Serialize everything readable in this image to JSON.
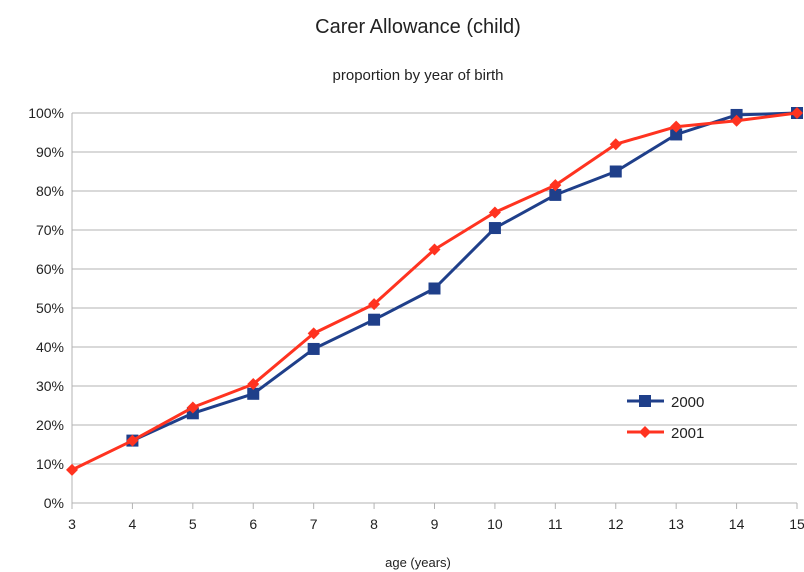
{
  "chart_data": {
    "type": "line",
    "title": "Carer Allowance (child)",
    "subtitle": "proportion by year of birth",
    "xlabel": "age (years)",
    "ylabel": "",
    "x": [
      3,
      4,
      5,
      6,
      7,
      8,
      9,
      10,
      11,
      12,
      13,
      14,
      15
    ],
    "xlim": [
      3,
      15
    ],
    "ylim": [
      0,
      1
    ],
    "y_ticks": [
      "0%",
      "10%",
      "20%",
      "30%",
      "40%",
      "50%",
      "60%",
      "70%",
      "80%",
      "90%",
      "100%"
    ],
    "grid": true,
    "legend_position": "right",
    "series": [
      {
        "name": "2000",
        "color": "#1f3f8a",
        "marker": "square",
        "values": [
          null,
          0.16,
          0.23,
          0.28,
          0.395,
          0.47,
          0.55,
          0.705,
          0.79,
          0.85,
          0.945,
          0.995,
          1.0
        ]
      },
      {
        "name": "2001",
        "color": "#ff3320",
        "marker": "diamond",
        "values": [
          0.085,
          0.16,
          0.245,
          0.305,
          0.435,
          0.51,
          0.65,
          0.745,
          0.815,
          0.92,
          0.965,
          0.98,
          1.0
        ]
      }
    ]
  }
}
